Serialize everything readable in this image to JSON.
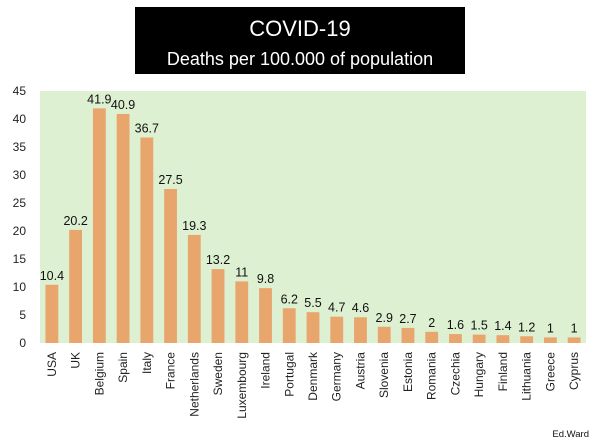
{
  "chart_data": {
    "type": "bar",
    "title": "COVID-19",
    "subtitle": "Deaths per 100.000 of population",
    "categories": [
      "USA",
      "UK",
      "Belgium",
      "Spain",
      "Italy",
      "France",
      "Netherlands",
      "Sweden",
      "Luxembourg",
      "Ireland",
      "Portugal",
      "Denmark",
      "Germany",
      "Austria",
      "Slovenia",
      "Estonia",
      "Romania",
      "Czechia",
      "Hungary",
      "Finland",
      "Lithuania",
      "Greece",
      "Cyprus"
    ],
    "values": [
      10.4,
      20.2,
      41.9,
      40.9,
      36.7,
      27.5,
      19.3,
      13.2,
      11,
      9.8,
      6.2,
      5.5,
      4.7,
      4.6,
      2.9,
      2.7,
      2,
      1.6,
      1.5,
      1.4,
      1.2,
      1,
      1
    ],
    "data_labels": [
      "10.4",
      "20.2",
      "41.9",
      "40.9",
      "36.7",
      "27.5",
      "19.3",
      "13.2",
      "11",
      "9.8",
      "6.2",
      "5.5",
      "4.7",
      "4.6",
      "2.9",
      "2.7",
      "2",
      "1.6",
      "1.5",
      "1.4",
      "1.2",
      "1",
      "1"
    ],
    "y_ticks": [
      "0",
      "5",
      "10",
      "15",
      "20",
      "25",
      "30",
      "35",
      "40",
      "45"
    ],
    "ylim": [
      0,
      45
    ],
    "xlabel": "",
    "ylabel": "",
    "grid": false,
    "legend": "none",
    "colors": {
      "bar": "#E9A66C",
      "plot_background": "#DDF0D2",
      "title_background": "#000000",
      "title_text": "#FFFFFF"
    }
  },
  "credit": "Ed.Ward"
}
